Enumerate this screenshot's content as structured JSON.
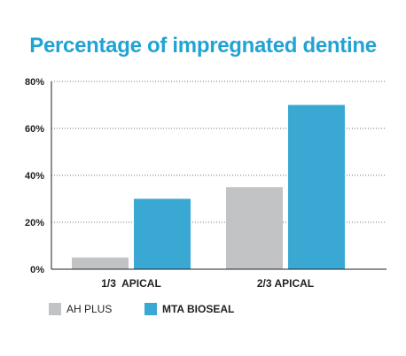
{
  "chart_data": {
    "type": "bar",
    "title": "Percentage of impregnated dentine",
    "categories": [
      "1/3  APICAL",
      "2/3 APICAL"
    ],
    "series": [
      {
        "name": "AH PLUS",
        "values": [
          5,
          35
        ],
        "color": "#c2c3c5"
      },
      {
        "name": "MTA BIOSEAL",
        "values": [
          30,
          70
        ],
        "color": "#39a9d4"
      }
    ],
    "ylim": [
      0,
      80
    ],
    "yticks": [
      0,
      20,
      40,
      60,
      80
    ],
    "ytick_suffix": "%",
    "grid": "horizontal dotted",
    "legend_position": "bottom-left",
    "title_color": "#22a3d3",
    "text_color": "#231f20"
  }
}
